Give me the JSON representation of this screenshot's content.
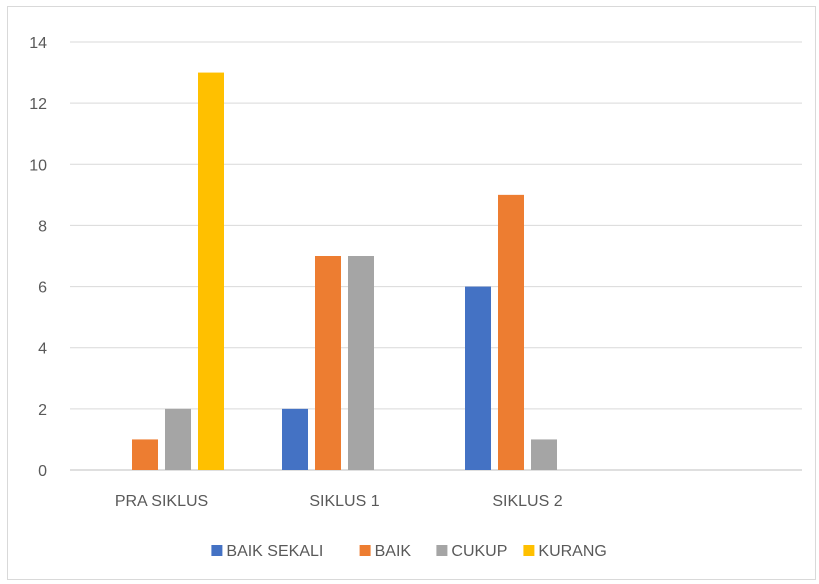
{
  "chart_data": {
    "type": "bar",
    "categories": [
      "PRA SIKLUS",
      "SIKLUS 1",
      "SIKLUS 2",
      ""
    ],
    "series": [
      {
        "name": "BAIK SEKALI",
        "color": "#4472c4",
        "values": [
          0,
          2,
          6,
          0
        ]
      },
      {
        "name": "BAIK",
        "color": "#ed7d31",
        "values": [
          1,
          7,
          9,
          0
        ]
      },
      {
        "name": "CUKUP",
        "color": "#a5a5a5",
        "values": [
          2,
          7,
          1,
          0
        ]
      },
      {
        "name": "KURANG",
        "color": "#ffc000",
        "values": [
          13,
          0,
          0,
          0
        ]
      }
    ],
    "yticks": [
      "0",
      "2",
      "4",
      "6",
      "8",
      "10",
      "12",
      "14"
    ],
    "ylim": [
      0,
      14
    ],
    "grid": true,
    "legend_position": "bottom"
  }
}
